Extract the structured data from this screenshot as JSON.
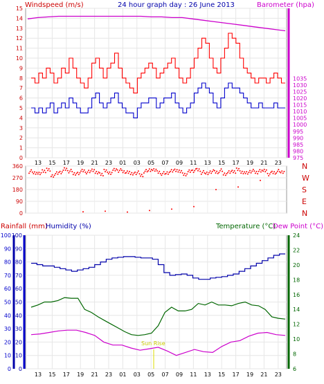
{
  "top": {
    "left_title": "Windspeed (m/s)",
    "center_title": "24 hour graph day : 26 June 2013",
    "right_title": "Barometer (hpa)"
  },
  "bottom": {
    "rain_label": "Rainfall (mm)",
    "hum_label": "Humidity (%)",
    "temp_label": "Temperature (°C)",
    "dew_label": "Dew Point (°C)",
    "sun_label": "Sun Rise"
  },
  "colors": {
    "wind": "#ff0000",
    "gust": "#dd0000",
    "wind_avg": "#0000cc",
    "baro": "#cc00cc",
    "dir": "#ff0000",
    "hum": "#0000aa",
    "temp": "#006600",
    "dew": "#cc00cc",
    "rain": "#0000cc",
    "sun": "#dddd00"
  },
  "chart_data": [
    {
      "type": "line",
      "title": "24 hour graph day : 26 June 2013",
      "x_ticks": [
        "13",
        "15",
        "17",
        "19",
        "21",
        "23",
        "01",
        "03",
        "05",
        "07",
        "09",
        "11",
        "13",
        "15",
        "17",
        "19",
        "21",
        "23"
      ],
      "ylabel": "Windspeed (m/s)",
      "ylim": [
        0,
        15
      ],
      "y_ticks": [
        0,
        1,
        2,
        3,
        4,
        5,
        6,
        7,
        8,
        9,
        10,
        11,
        12,
        13,
        14,
        15
      ],
      "y2label": "Barometer (hpa)",
      "y2lim": [
        975,
        1088
      ],
      "y2_ticks": [
        975,
        980,
        985,
        990,
        995,
        1000,
        1005,
        1010,
        1015,
        1020,
        1025,
        1030,
        1035
      ],
      "series": [
        {
          "name": "gust",
          "axis": "y",
          "values": [
            8,
            7.5,
            8.5,
            8,
            9,
            8.5,
            7.5,
            8,
            9,
            8.5,
            10,
            9,
            8,
            7.5,
            7,
            8,
            9.5,
            10,
            9,
            8,
            9,
            9.5,
            10.5,
            9,
            8,
            7.5,
            7,
            6.5,
            8,
            8.5,
            9,
            9.5,
            9,
            8,
            8.5,
            9,
            9.5,
            10,
            9,
            8,
            7.5,
            8,
            9,
            10,
            11,
            12,
            11.5,
            10,
            9,
            8.5,
            10,
            11,
            12.5,
            12,
            11.5,
            10,
            9,
            8.5,
            8,
            7.5,
            8,
            8,
            7.5,
            8,
            8.5,
            8,
            7.5
          ]
        },
        {
          "name": "average",
          "axis": "y",
          "values": [
            5,
            4.5,
            5,
            4.5,
            5,
            5.5,
            4.5,
            5,
            5.5,
            5,
            6,
            5.5,
            5,
            4.5,
            4.5,
            5,
            6,
            6.5,
            5.5,
            5,
            5.5,
            6,
            6.5,
            5.5,
            5,
            4.5,
            4.5,
            4,
            5,
            5.5,
            5.5,
            6,
            6,
            5,
            5.5,
            6,
            6,
            6.5,
            5.5,
            5,
            4.5,
            5,
            5.5,
            6.5,
            7,
            7.5,
            7,
            6.5,
            5.5,
            5,
            6,
            7,
            7.5,
            7,
            7,
            6.5,
            6,
            5.5,
            5,
            5,
            5.5,
            5,
            5,
            5,
            5.5,
            5,
            5
          ]
        },
        {
          "name": "barometer",
          "axis": "y2",
          "values": [
            1080,
            1081,
            1081.5,
            1082,
            1082,
            1082,
            1082,
            1082,
            1082,
            1082,
            1082,
            1082,
            1081.5,
            1081.5,
            1081,
            1081,
            1080,
            1079,
            1078,
            1077,
            1076,
            1075,
            1074,
            1073,
            1072,
            1071
          ]
        }
      ]
    },
    {
      "type": "scatter",
      "y_ticks": [
        "360",
        "270",
        "180",
        "90",
        "0"
      ],
      "y2_ticks": [
        "N",
        "W",
        "S",
        "E",
        "N"
      ],
      "ylim": [
        0,
        360
      ],
      "series": [
        {
          "name": "direction",
          "values": [
            320,
            310,
            300,
            325,
            330,
            290,
            305,
            315,
            335,
            320,
            300,
            310,
            325,
            315,
            330,
            305,
            300,
            320,
            310,
            330,
            325,
            315,
            320,
            300,
            310,
            290,
            320,
            330,
            325,
            315,
            305,
            310,
            320,
            330,
            315,
            300,
            320,
            325,
            330,
            310,
            305,
            320,
            315,
            325,
            300,
            310,
            320,
            330,
            315,
            305,
            320,
            310,
            330,
            325,
            300,
            310,
            320,
            315
          ]
        },
        {
          "name": "outliers",
          "values": [
            10,
            15,
            8,
            20,
            30,
            50,
            180,
            200,
            250
          ]
        }
      ]
    },
    {
      "type": "line",
      "x_ticks": [
        "13",
        "15",
        "17",
        "19",
        "21",
        "23",
        "01",
        "03",
        "05",
        "07",
        "09",
        "11",
        "13",
        "15",
        "17",
        "19",
        "21",
        "23"
      ],
      "ylabel": "Rainfall (mm)",
      "ylim": [
        0,
        100
      ],
      "y_ticks": [
        0,
        10,
        20,
        30,
        40,
        50,
        60,
        70,
        80,
        90,
        100
      ],
      "y2label": "Temperature (°C)",
      "y2lim": [
        6,
        24
      ],
      "y2_ticks": [
        6,
        8,
        10,
        12,
        14,
        16,
        18,
        20,
        22,
        24
      ],
      "series": [
        {
          "name": "humidity",
          "axis": "y",
          "values": [
            79,
            78,
            77,
            77,
            76,
            75,
            74,
            73,
            74,
            75,
            76,
            78,
            80,
            82,
            83,
            83.5,
            84,
            84,
            83.5,
            83,
            83,
            82,
            78,
            72,
            70,
            70.5,
            71,
            70,
            68,
            67,
            67,
            68,
            68.5,
            69,
            70,
            71,
            73,
            75,
            77,
            79,
            81,
            83,
            85,
            86
          ]
        },
        {
          "name": "temperature",
          "axis": "y2",
          "values": [
            14.3,
            14.6,
            15,
            15,
            15.2,
            15.6,
            15.5,
            15.5,
            14,
            13.6,
            13,
            12.5,
            12,
            11.5,
            11,
            10.6,
            10.5,
            10.6,
            10.8,
            11.8,
            13.6,
            14.3,
            13.8,
            13.8,
            14,
            14.8,
            14.6,
            15,
            14.6,
            14.6,
            14.5,
            14.8,
            15,
            14.6,
            14.5,
            14,
            13,
            12.8,
            12.7
          ]
        },
        {
          "name": "dewpoint",
          "axis": "y2",
          "values": [
            10.6,
            10.7,
            10.9,
            11.1,
            11.2,
            11.2,
            10.9,
            10.5,
            9.6,
            9.2,
            9.2,
            8.8,
            8.5,
            8.7,
            8.9,
            8.4,
            7.8,
            8.2,
            8.6,
            8.3,
            8.2,
            9,
            9.6,
            9.8,
            10.4,
            10.8,
            10.9,
            10.6,
            10.5
          ]
        }
      ]
    }
  ]
}
